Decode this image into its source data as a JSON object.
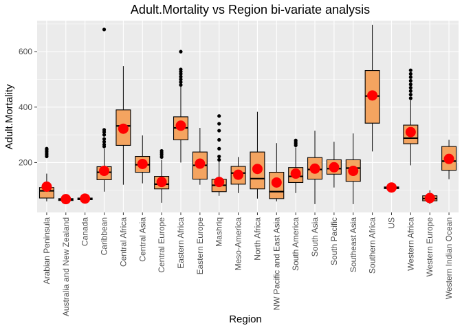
{
  "chart_data": {
    "type": "boxplot",
    "title": "Adult.Mortality vs Region bi-variate analysis",
    "xlabel": "Region",
    "ylabel": "Adult.Mortality",
    "ylim": [
      20,
      712
    ],
    "yticks": [
      200,
      400,
      600
    ],
    "grid": true,
    "legend": "none",
    "colors": {
      "panel": "#ebebeb",
      "grid": "#ffffff",
      "box_fill": "#f4a460",
      "box_line": "#000000",
      "mean_point": "#ff0000",
      "outlier": "#000000"
    },
    "categories": [
      "Arabian Peninsula",
      "Australia and New Zealand",
      "Canada",
      "Caribbean",
      "Central Africa",
      "Central Asia",
      "Central Europe",
      "Eastern Africa",
      "Eastern Europe",
      "Mashriq",
      "Meso-America",
      "North Africa",
      "NW Pacific and East Asia",
      "South America",
      "South Asia",
      "South Pacific",
      "Southeast Asia",
      "Southern Africa",
      "US",
      "Western Africa",
      "Western Europe",
      "Western Indian Ocean"
    ],
    "boxes": [
      {
        "whisker_low": 60,
        "q1": 72,
        "median": 98,
        "q3": 110,
        "whisker_high": 160,
        "mean": 113,
        "outliers": [
          222,
          228,
          234,
          240,
          246,
          250
        ]
      },
      {
        "whisker_low": 62,
        "q1": 63,
        "median": 67,
        "q3": 70,
        "whisker_high": 72,
        "mean": 68,
        "outliers": []
      },
      {
        "whisker_low": 65,
        "q1": 66,
        "median": 70,
        "q3": 72,
        "whisker_high": 74,
        "mean": 70,
        "outliers": []
      },
      {
        "whisker_low": 95,
        "q1": 138,
        "median": 165,
        "q3": 185,
        "whisker_high": 250,
        "mean": 170,
        "outliers": [
          258,
          265,
          275,
          285,
          300,
          310,
          318,
          680
        ]
      },
      {
        "whisker_low": 120,
        "q1": 262,
        "median": 332,
        "q3": 390,
        "whisker_high": 548,
        "mean": 322,
        "outliers": []
      },
      {
        "whisker_low": 125,
        "q1": 165,
        "median": 192,
        "q3": 222,
        "whisker_high": 298,
        "mean": 195,
        "outliers": []
      },
      {
        "whisker_low": 55,
        "q1": 105,
        "median": 122,
        "q3": 150,
        "whisker_high": 210,
        "mean": 130,
        "outliers": [
          220,
          228,
          235,
          242
        ]
      },
      {
        "whisker_low": 200,
        "q1": 282,
        "median": 325,
        "q3": 365,
        "whisker_high": 475,
        "mean": 333,
        "outliers": [
          480,
          490,
          500,
          510,
          520,
          528,
          536,
          600
        ]
      },
      {
        "whisker_low": 120,
        "q1": 140,
        "median": 190,
        "q3": 238,
        "whisker_high": 325,
        "mean": 196,
        "outliers": []
      },
      {
        "whisker_low": 80,
        "q1": 95,
        "median": 118,
        "q3": 140,
        "whisker_high": 205,
        "mean": 130,
        "outliers": [
          210,
          222,
          250,
          282,
          315,
          340,
          368
        ]
      },
      {
        "whisker_low": 90,
        "q1": 122,
        "median": 162,
        "q3": 186,
        "whisker_high": 220,
        "mean": 156,
        "outliers": []
      },
      {
        "whisker_low": 70,
        "q1": 105,
        "median": 142,
        "q3": 238,
        "whisker_high": 383,
        "mean": 177,
        "outliers": []
      },
      {
        "whisker_low": 60,
        "q1": 70,
        "median": 95,
        "q3": 165,
        "whisker_high": 270,
        "mean": 128,
        "outliers": []
      },
      {
        "whisker_low": 90,
        "q1": 128,
        "median": 150,
        "q3": 182,
        "whisker_high": 255,
        "mean": 160,
        "outliers": [
          262,
          268,
          274,
          280
        ]
      },
      {
        "whisker_low": 50,
        "q1": 140,
        "median": 175,
        "q3": 218,
        "whisker_high": 315,
        "mean": 178,
        "outliers": []
      },
      {
        "whisker_low": 110,
        "q1": 158,
        "median": 178,
        "q3": 210,
        "whisker_high": 275,
        "mean": 183,
        "outliers": []
      },
      {
        "whisker_low": 50,
        "q1": 132,
        "median": 180,
        "q3": 210,
        "whisker_high": 305,
        "mean": 170,
        "outliers": []
      },
      {
        "whisker_low": 240,
        "q1": 342,
        "median": 440,
        "q3": 532,
        "whisker_high": 697,
        "mean": 442,
        "outliers": []
      },
      {
        "whisker_low": 105,
        "q1": 106,
        "median": 109,
        "q3": 112,
        "whisker_high": 114,
        "mean": 110,
        "outliers": []
      },
      {
        "whisker_low": 190,
        "q1": 268,
        "median": 288,
        "q3": 335,
        "whisker_high": 425,
        "mean": 310,
        "outliers": [
          432,
          445,
          458,
          470,
          482,
          495,
          508,
          520,
          533
        ]
      },
      {
        "whisker_low": 50,
        "q1": 62,
        "median": 70,
        "q3": 80,
        "whisker_high": 100,
        "mean": 72,
        "outliers": []
      },
      {
        "whisker_low": 140,
        "q1": 172,
        "median": 205,
        "q3": 258,
        "whisker_high": 282,
        "mean": 213,
        "outliers": []
      }
    ]
  }
}
